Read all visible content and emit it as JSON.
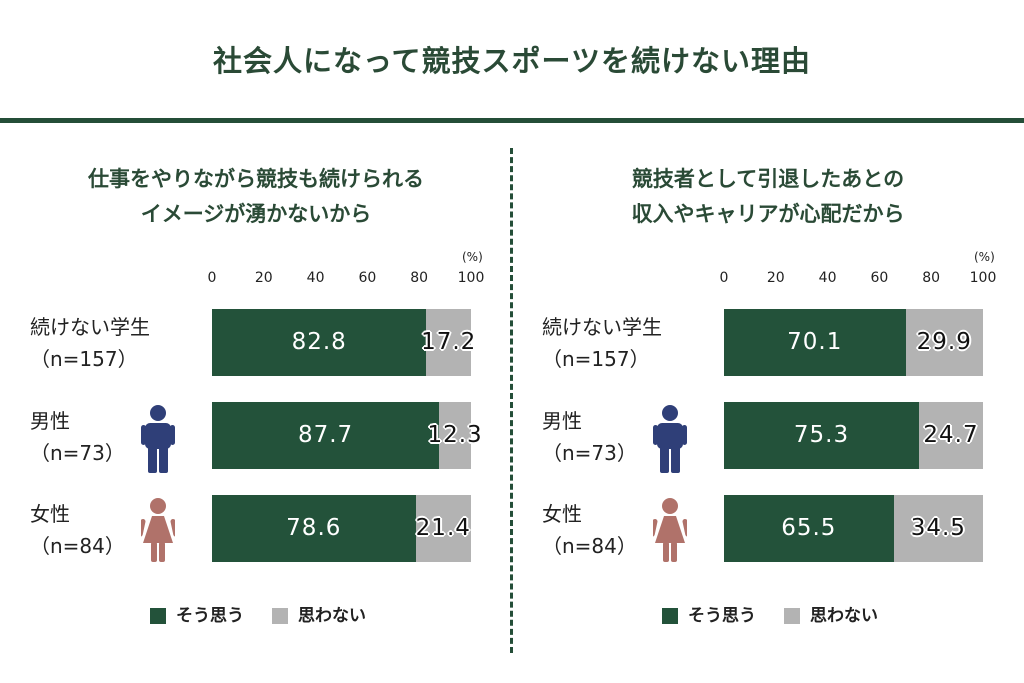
{
  "title": "社会人になって競技スポーツを続けない理由",
  "colors": {
    "yes": "#23523a",
    "no": "#b3b3b3",
    "accent": "#244e38",
    "male_icon": "#2f3f78",
    "female_icon": "#b0726a"
  },
  "rows": [
    {
      "label_line1": "続けない学生",
      "label_line2": "（n=157）",
      "icon": ""
    },
    {
      "label_line1": "男性",
      "label_line2": "（n=73）",
      "icon": "male-person-icon"
    },
    {
      "label_line1": "女性",
      "label_line2": "（n=84）",
      "icon": "female-person-icon"
    }
  ],
  "legend": {
    "yes_label": "そう思う",
    "no_label": "思わない"
  },
  "chart_data": [
    {
      "type": "bar",
      "orientation": "horizontal",
      "stacked": true,
      "title_line1": "仕事をやりながら競技も続けられる",
      "title_line2": "イメージが湧かないから",
      "unit": "(%)",
      "xlim": [
        0,
        100
      ],
      "ticks": [
        "0",
        "20",
        "40",
        "60",
        "80",
        "100"
      ],
      "categories": [
        "続けない学生（n=157）",
        "男性（n=73）",
        "女性（n=84）"
      ],
      "series": [
        {
          "name": "そう思う",
          "values": [
            82.8,
            87.7,
            78.6
          ],
          "labels": [
            "82.8",
            "87.7",
            "78.6"
          ]
        },
        {
          "name": "思わない",
          "values": [
            17.2,
            12.3,
            21.4
          ],
          "labels": [
            "17.2",
            "12.3",
            "21.4"
          ]
        }
      ],
      "legend_position": "bottom"
    },
    {
      "type": "bar",
      "orientation": "horizontal",
      "stacked": true,
      "title_line1": "競技者として引退したあとの",
      "title_line2": "収入やキャリアが心配だから",
      "unit": "(%)",
      "xlim": [
        0,
        100
      ],
      "ticks": [
        "0",
        "20",
        "40",
        "60",
        "80",
        "100"
      ],
      "categories": [
        "続けない学生（n=157）",
        "男性（n=73）",
        "女性（n=84）"
      ],
      "series": [
        {
          "name": "そう思う",
          "values": [
            70.1,
            75.3,
            65.5
          ],
          "labels": [
            "70.1",
            "75.3",
            "65.5"
          ]
        },
        {
          "name": "思わない",
          "values": [
            29.9,
            24.7,
            34.5
          ],
          "labels": [
            "29.9",
            "24.7",
            "34.5"
          ]
        }
      ],
      "legend_position": "bottom"
    }
  ]
}
